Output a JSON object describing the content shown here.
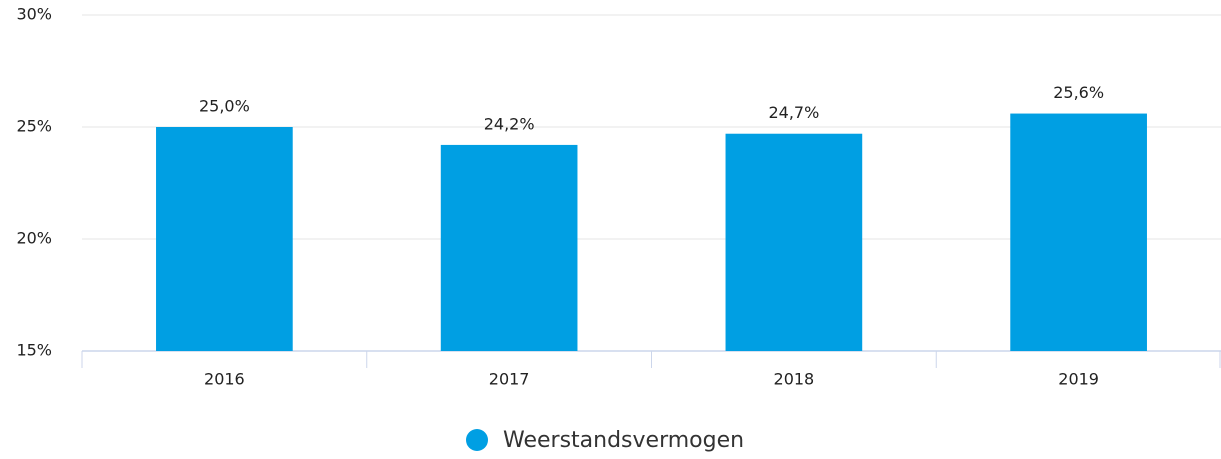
{
  "chart_data": {
    "type": "bar",
    "categories": [
      "2016",
      "2017",
      "2018",
      "2019"
    ],
    "series": [
      {
        "name": "Weerstandsvermogen",
        "color": "#009fe3",
        "values": [
          25.0,
          24.2,
          24.7,
          25.6
        ],
        "value_labels": [
          "25,0%",
          "24,2%",
          "24,7%",
          "25,6%"
        ]
      }
    ],
    "ylim": [
      15,
      30
    ],
    "yticks": [
      {
        "value": 15,
        "label": "15%"
      },
      {
        "value": 20,
        "label": "20%"
      },
      {
        "value": 25,
        "label": "25%"
      },
      {
        "value": 30,
        "label": "30%"
      }
    ],
    "grid": true,
    "legend": "bottom"
  }
}
